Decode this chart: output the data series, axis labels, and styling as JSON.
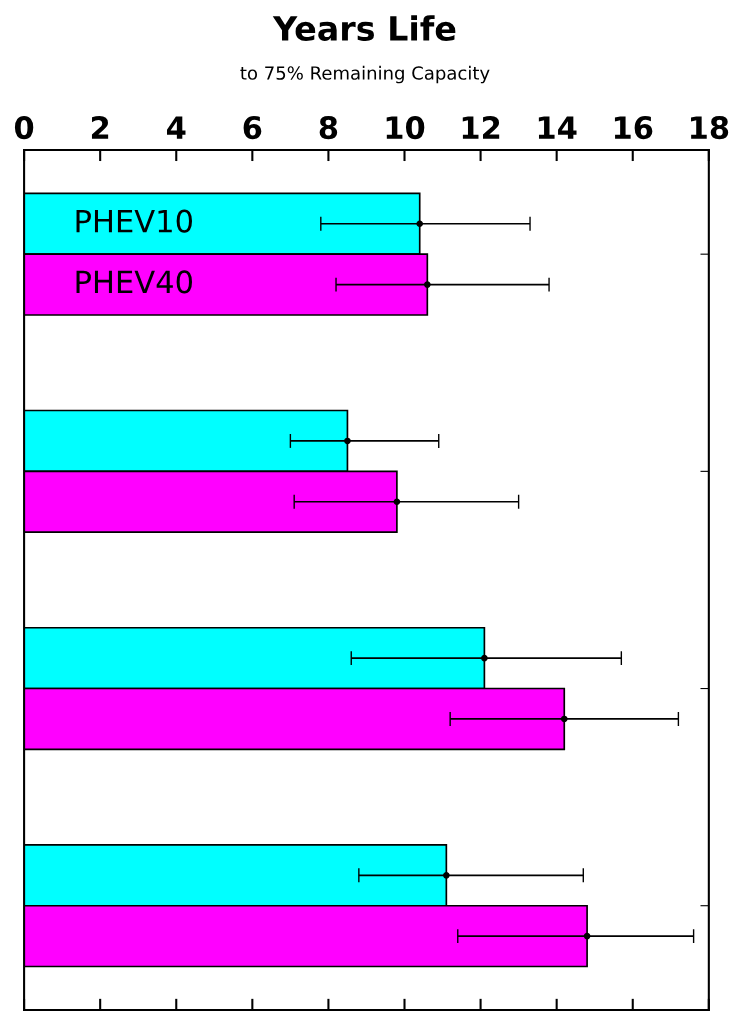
{
  "chart_data": {
    "type": "bar",
    "orientation": "horizontal",
    "title": "Years Life",
    "subtitle": "to 75% Remaining Capacity",
    "categories": [
      null,
      null,
      null,
      null
    ],
    "series": [
      {
        "name": "PHEV10",
        "color": "#00ffff",
        "values": [
          10.4,
          8.5,
          12.1,
          11.1
        ],
        "errors": [
          [
            7.8,
            13.3
          ],
          [
            7.0,
            10.9
          ],
          [
            8.6,
            15.7
          ],
          [
            8.8,
            14.7
          ]
        ]
      },
      {
        "name": "PHEV40",
        "color": "#ff00ff",
        "values": [
          10.6,
          9.8,
          14.2,
          14.8
        ],
        "errors": [
          [
            8.2,
            13.8
          ],
          [
            7.1,
            13.0
          ],
          [
            11.2,
            17.2
          ],
          [
            11.4,
            17.6
          ]
        ]
      },
      {
        "type": "scatter",
        "color": "#000000",
        "marker": "circle",
        "values": [
          10.4,
          8.5,
          12.1,
          11.1
        ]
      },
      {
        "type": "scatter",
        "color": "#000000",
        "marker": "circle",
        "values": [
          10.6,
          9.8,
          14.2,
          14.8
        ]
      }
    ],
    "xlim": [
      0,
      18
    ],
    "xticks": [
      0,
      2,
      4,
      6,
      8,
      10,
      12,
      14,
      16,
      18
    ],
    "grid": false,
    "legend": false
  }
}
